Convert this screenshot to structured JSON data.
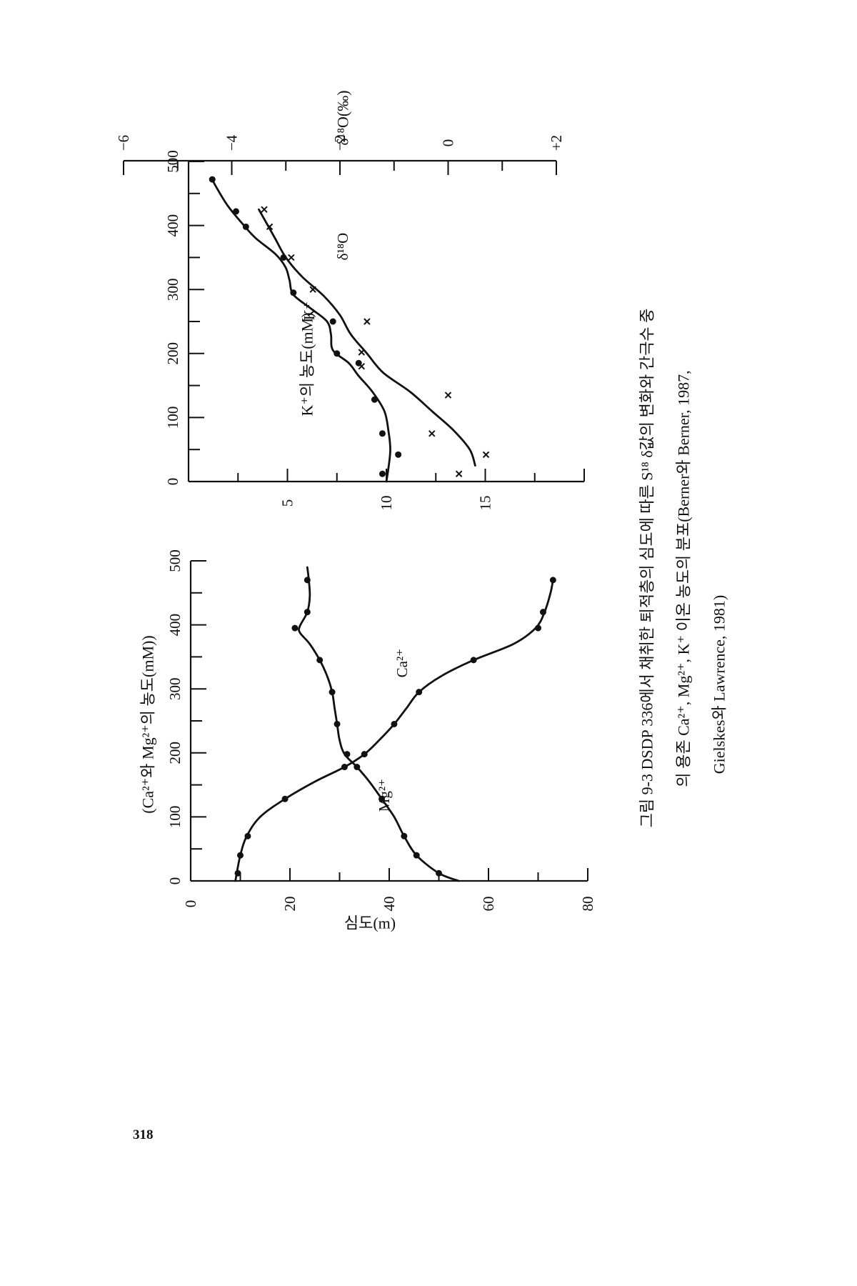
{
  "page_number": "318",
  "caption": {
    "line1": "그림 9-3  DSDP 336에서 채취한 퇴적층의 심도에 따른 S¹⁸ δ값의 변화와 간극수 중",
    "line2": "의  용존  Ca²⁺, Mg²⁺, K⁺ 이온  농도의  분포(Berner와  Berner, 1987,",
    "line3": "Gielskes와 Lawrence, 1981)"
  },
  "colors": {
    "ink": "#111111",
    "paper": "#ffffff"
  },
  "chart_data": [
    {
      "type": "line",
      "panel": "left",
      "x_axis": {
        "label": "심도(m)",
        "range": [
          0,
          500
        ],
        "ticks": [
          "0",
          "100",
          "200",
          "300",
          "400",
          "500"
        ]
      },
      "y_axis": {
        "label": "(Ca²⁺와 Mg²⁺의 농도(mM))",
        "range": [
          0,
          80
        ],
        "ticks": [
          "0",
          "20",
          "40",
          "60",
          "80"
        ]
      },
      "series": [
        {
          "name": "Ca²⁺",
          "points": [
            [
              12,
              9.5
            ],
            [
              40,
              10
            ],
            [
              70,
              11.5
            ],
            [
              128,
              19
            ],
            [
              178,
              31
            ],
            [
              198,
              35
            ],
            [
              245,
              41
            ],
            [
              295,
              46
            ],
            [
              345,
              57
            ],
            [
              395,
              70
            ],
            [
              420,
              71
            ],
            [
              470,
              73
            ]
          ],
          "curve": [
            [
              0,
              9
            ],
            [
              40,
              10
            ],
            [
              70,
              11.3
            ],
            [
              100,
              14
            ],
            [
              128,
              19
            ],
            [
              155,
              25
            ],
            [
              178,
              31
            ],
            [
              198,
              35
            ],
            [
              220,
              38
            ],
            [
              245,
              41
            ],
            [
              270,
              43.5
            ],
            [
              295,
              46
            ],
            [
              320,
              50.5
            ],
            [
              345,
              57
            ],
            [
              370,
              65
            ],
            [
              395,
              69.5
            ],
            [
              420,
              71.3
            ],
            [
              450,
              72.5
            ],
            [
              470,
              73
            ]
          ]
        },
        {
          "name": "Mg²⁺",
          "points": [
            [
              12,
              50
            ],
            [
              40,
              45.5
            ],
            [
              70,
              43
            ],
            [
              128,
              38.5
            ],
            [
              178,
              33.5
            ],
            [
              198,
              31.5
            ],
            [
              245,
              29.5
            ],
            [
              295,
              28.5
            ],
            [
              345,
              26
            ],
            [
              395,
              21
            ],
            [
              420,
              23.5
            ],
            [
              470,
              23.5
            ]
          ],
          "curve": [
            [
              0,
              54
            ],
            [
              12,
              50
            ],
            [
              40,
              45.5
            ],
            [
              70,
              43
            ],
            [
              100,
              41
            ],
            [
              128,
              38.5
            ],
            [
              155,
              36
            ],
            [
              178,
              33.5
            ],
            [
              198,
              31
            ],
            [
              220,
              30
            ],
            [
              245,
              29.5
            ],
            [
              270,
              29
            ],
            [
              295,
              28.5
            ],
            [
              320,
              27.5
            ],
            [
              345,
              26
            ],
            [
              370,
              24
            ],
            [
              388,
              22
            ],
            [
              398,
              22
            ],
            [
              420,
              23.5
            ],
            [
              445,
              24
            ],
            [
              470,
              23.8
            ],
            [
              490,
              23.5
            ]
          ]
        }
      ]
    },
    {
      "type": "line",
      "panel": "right",
      "x_axis": {
        "range": [
          0,
          500
        ],
        "ticks": [
          "0",
          "100",
          "200",
          "300",
          "400",
          "500"
        ]
      },
      "y_axis": {
        "label": "K⁺의 농도(mM)",
        "range": [
          0,
          20
        ],
        "ticks": [
          "5",
          "10",
          "15"
        ]
      },
      "y_axis_top": {
        "label": "δ¹⁸O(‰)",
        "range": [
          -6,
          2
        ],
        "ticks": [
          "−6",
          "−4",
          "−2",
          "0",
          "+2"
        ]
      },
      "series": [
        {
          "name": "K⁺",
          "marker": "dot",
          "axis": "K⁺의 농도(mM)",
          "points": [
            [
              12,
              9.8
            ],
            [
              42,
              10.6
            ],
            [
              75,
              9.8
            ],
            [
              128,
              9.4
            ],
            [
              185,
              8.6
            ],
            [
              200,
              7.5
            ],
            [
              250,
              7.3
            ],
            [
              295,
              5.3
            ],
            [
              350,
              4.8
            ],
            [
              398,
              2.9
            ],
            [
              422,
              2.4
            ],
            [
              472,
              1.2
            ]
          ],
          "curve": [
            [
              0,
              10
            ],
            [
              20,
              10.1
            ],
            [
              50,
              10.2
            ],
            [
              80,
              10.1
            ],
            [
              110,
              9.9
            ],
            [
              140,
              9.3
            ],
            [
              165,
              8.6
            ],
            [
              185,
              8.1
            ],
            [
              205,
              7.3
            ],
            [
              230,
              7.2
            ],
            [
              250,
              7.0
            ],
            [
              270,
              6.2
            ],
            [
              292,
              5.3
            ],
            [
              315,
              5.1
            ],
            [
              335,
              4.9
            ],
            [
              355,
              4.4
            ],
            [
              380,
              3.4
            ],
            [
              400,
              2.8
            ],
            [
              430,
              2.0
            ],
            [
              460,
              1.4
            ],
            [
              472,
              1.2
            ]
          ]
        },
        {
          "name": "δ¹⁸O",
          "marker": "cross",
          "axis": "δ¹⁸O(‰)",
          "points": [
            [
              12,
              0.2
            ],
            [
              42,
              0.7
            ],
            [
              75,
              -0.3
            ],
            [
              135,
              0.0
            ],
            [
              180,
              -1.6
            ],
            [
              202,
              -1.6
            ],
            [
              250,
              -1.5
            ],
            [
              300,
              -2.5
            ],
            [
              350,
              -2.9
            ],
            [
              398,
              -3.3
            ],
            [
              425,
              -3.4
            ]
          ],
          "curve": [
            [
              25,
              0.5
            ],
            [
              50,
              0.4
            ],
            [
              80,
              0.1
            ],
            [
              110,
              -0.3
            ],
            [
              140,
              -0.7
            ],
            [
              170,
              -1.2
            ],
            [
              200,
              -1.5
            ],
            [
              230,
              -1.8
            ],
            [
              260,
              -2.0
            ],
            [
              290,
              -2.3
            ],
            [
              320,
              -2.7
            ],
            [
              350,
              -3.0
            ],
            [
              380,
              -3.2
            ],
            [
              410,
              -3.4
            ],
            [
              425,
              -3.5
            ]
          ]
        }
      ]
    }
  ]
}
